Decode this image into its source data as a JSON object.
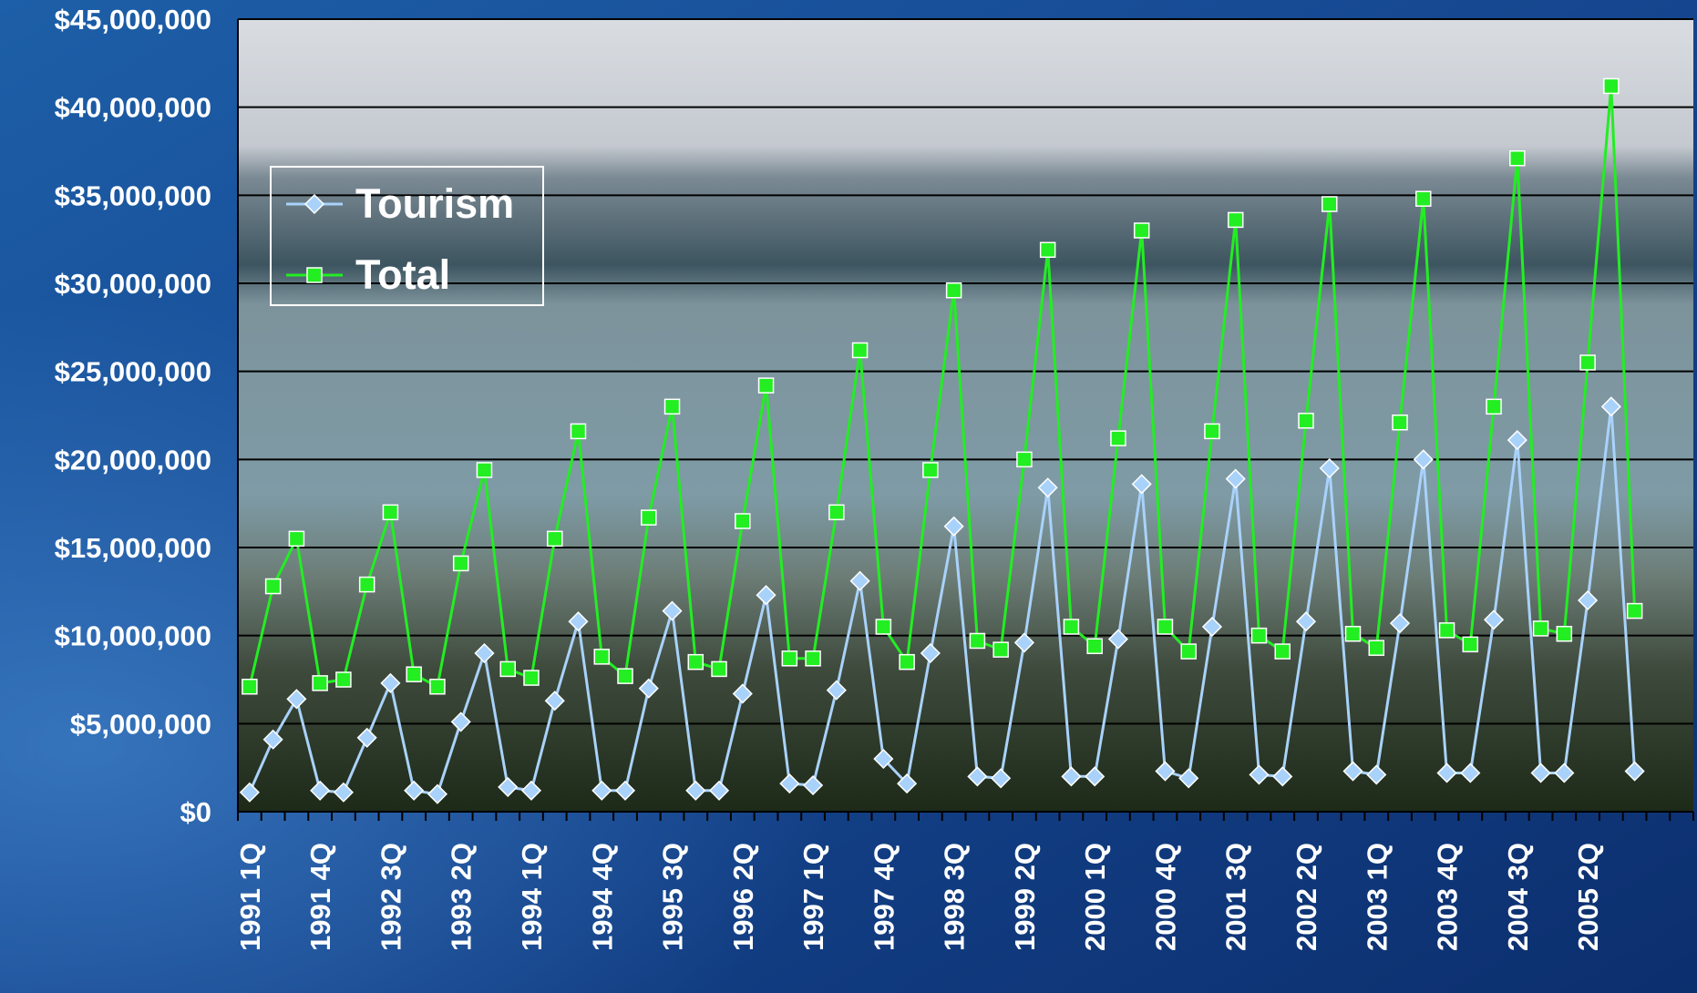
{
  "chart_data": {
    "type": "line",
    "categories": [
      "1991 1Q",
      null,
      null,
      "1991 4Q",
      null,
      null,
      "1992 3Q",
      null,
      null,
      "1993 2Q",
      null,
      null,
      "1994 1Q",
      null,
      null,
      "1994 4Q",
      null,
      null,
      "1995 3Q",
      null,
      null,
      "1996 2Q",
      null,
      null,
      "1997 1Q",
      null,
      null,
      "1997 4Q",
      null,
      null,
      "1998 3Q",
      null,
      null,
      "1999 2Q",
      null,
      null,
      "2000 1Q",
      null,
      null,
      "2000 4Q",
      null,
      null,
      "2001 3Q",
      null,
      null,
      "2002 2Q",
      null,
      null,
      "2003 1Q",
      null,
      null,
      "2003 4Q",
      null,
      null,
      "2004 3Q",
      null,
      null,
      "2005 2Q",
      null,
      null,
      null,
      null
    ],
    "series": [
      {
        "name": "Tourism",
        "color": "#a9d2fb",
        "marker": "diamond",
        "values": [
          1100000,
          4100000,
          6400000,
          1200000,
          1100000,
          4200000,
          7300000,
          1200000,
          1000000,
          5100000,
          9000000,
          1400000,
          1200000,
          6300000,
          10800000,
          1200000,
          1200000,
          7000000,
          11400000,
          1200000,
          1200000,
          6700000,
          12300000,
          1600000,
          1500000,
          6900000,
          13100000,
          3000000,
          1600000,
          9000000,
          16200000,
          2000000,
          1900000,
          9600000,
          18400000,
          2000000,
          2000000,
          9800000,
          18600000,
          2300000,
          1900000,
          10500000,
          18900000,
          2100000,
          2000000,
          10800000,
          19500000,
          2300000,
          2100000,
          10700000,
          20000000,
          2200000,
          2200000,
          10900000,
          21100000,
          2200000,
          2200000,
          12000000,
          23000000,
          2300000,
          null,
          null
        ]
      },
      {
        "name": "Total",
        "color": "#22ee22",
        "marker": "square",
        "values": [
          7100000,
          12800000,
          15500000,
          7300000,
          7500000,
          12900000,
          17000000,
          7800000,
          7100000,
          14100000,
          19400000,
          8100000,
          7600000,
          15500000,
          21600000,
          8800000,
          7700000,
          16700000,
          23000000,
          8500000,
          8100000,
          16500000,
          24200000,
          8700000,
          8700000,
          17000000,
          26200000,
          10500000,
          8500000,
          19400000,
          29600000,
          9700000,
          9200000,
          20000000,
          31900000,
          10500000,
          9400000,
          21200000,
          33000000,
          10500000,
          9100000,
          21600000,
          33600000,
          10000000,
          9100000,
          22200000,
          34500000,
          10100000,
          9300000,
          22100000,
          34800000,
          10300000,
          9500000,
          23000000,
          37100000,
          10400000,
          10100000,
          25500000,
          41200000,
          11400000,
          null,
          null
        ]
      }
    ],
    "ylim": [
      0,
      45000000
    ],
    "yticks": [
      {
        "value": 0,
        "label": "$0"
      },
      {
        "value": 5000000,
        "label": "$5,000,000"
      },
      {
        "value": 10000000,
        "label": "$10,000,000"
      },
      {
        "value": 15000000,
        "label": "$15,000,000"
      },
      {
        "value": 20000000,
        "label": "$20,000,000"
      },
      {
        "value": 25000000,
        "label": "$25,000,000"
      },
      {
        "value": 30000000,
        "label": "$30,000,000"
      },
      {
        "value": 35000000,
        "label": "$35,000,000"
      },
      {
        "value": 40000000,
        "label": "$40,000,000"
      },
      {
        "value": 45000000,
        "label": "$45,000,000"
      }
    ],
    "grid": true,
    "legend": "upper left"
  }
}
